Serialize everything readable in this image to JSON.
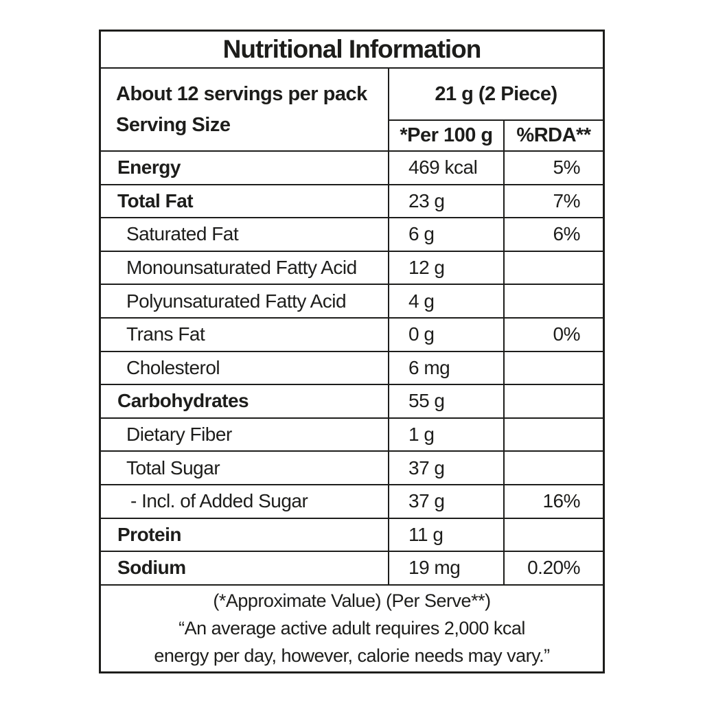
{
  "title": "Nutritional Information",
  "header": {
    "servings_line": "About 12 servings per pack",
    "serving_size_label": "Serving Size",
    "serving_size_value": "21 g (2 Piece)",
    "col_per100": "*Per 100 g",
    "col_rda": "%RDA**"
  },
  "rows": [
    {
      "label": "Energy",
      "per100": "469 kcal",
      "rda": "5%"
    },
    {
      "label": "Total Fat",
      "per100": "23 g",
      "rda": "7%"
    },
    {
      "label": "Saturated Fat",
      "per100": "6 g",
      "rda": "6%"
    },
    {
      "label": "Monounsaturated Fatty Acid",
      "per100": "12 g",
      "rda": ""
    },
    {
      "label": "Polyunsaturated Fatty Acid",
      "per100": "4 g",
      "rda": ""
    },
    {
      "label": "Trans Fat",
      "per100": "0 g",
      "rda": "0%"
    },
    {
      "label": "Cholesterol",
      "per100": "6 mg",
      "rda": ""
    },
    {
      "label": "Carbohydrates",
      "per100": "55 g",
      "rda": ""
    },
    {
      "label": "Dietary Fiber",
      "per100": "1 g",
      "rda": ""
    },
    {
      "label": "Total Sugar",
      "per100": "37 g",
      "rda": ""
    },
    {
      "label": "- Incl. of Added Sugar",
      "per100": "37 g",
      "rda": "16%"
    },
    {
      "label": "Protein",
      "per100": "11 g",
      "rda": ""
    },
    {
      "label": "Sodium",
      "per100": "19 mg",
      "rda": "0.20%"
    }
  ],
  "footer": {
    "line1": "(*Approximate Value) (Per Serve**)",
    "line2": "“An average active adult requires 2,000 kcal",
    "line3": "energy per day, however, calorie needs may vary.”"
  },
  "colors": {
    "text": "#1d1d1b",
    "border": "#1d1d1b",
    "background": "#ffffff"
  }
}
